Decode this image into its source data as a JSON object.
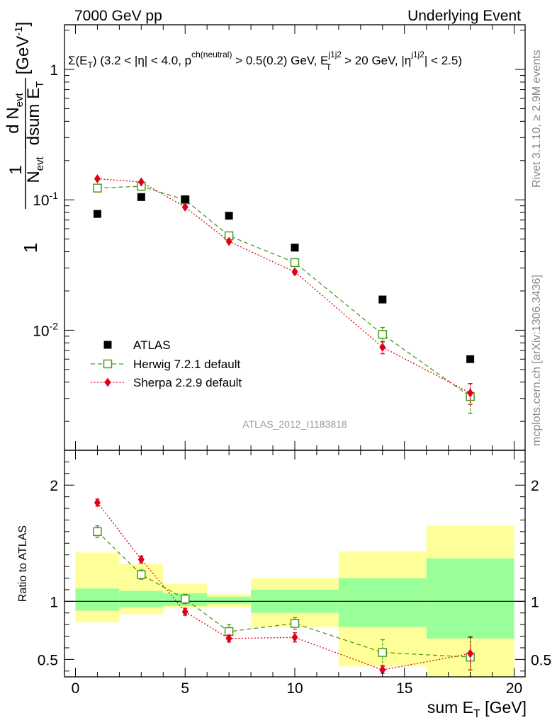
{
  "header": {
    "left": "7000 GeV pp",
    "right": "Underlying Event"
  },
  "chart_data": [
    {
      "type": "scatter",
      "title": "Σ(E_T) (3.2 < |η| < 4.0, p^{ch(neutral)} > 0.5(0.2) GeV, E_T^{j1j2} > 20 GeV, |η^{j1j2}| < 2.5)",
      "xlabel": "sum E_T [GeV]",
      "ylabel": "1/N_evt dN_evt/dsum E_T [GeV^-1]",
      "yscale": "log",
      "xlim": [
        -0.5,
        20.5
      ],
      "ylim": [
        0.0012,
        2.2
      ],
      "x": [
        1,
        3,
        5,
        7,
        10,
        14,
        18
      ],
      "x_edges": [
        0,
        2,
        4,
        6,
        8,
        12,
        16,
        20
      ],
      "series": [
        {
          "name": "ATLAS",
          "color": "#000000",
          "marker": "square",
          "values": [
            0.078,
            0.105,
            0.101,
            0.0755,
            0.043,
            0.0172,
            0.006
          ]
        },
        {
          "name": "Herwig 7.2.1 default",
          "color": "#4a9a1e",
          "marker": "open-square",
          "line": "dashed",
          "values": [
            0.123,
            0.127,
            0.1,
            0.053,
            0.033,
            0.0093,
            0.0031
          ],
          "errors": [
            0,
            0,
            0,
            0.002,
            0.002,
            0.0012,
            0.0008
          ]
        },
        {
          "name": "Sherpa 2.2.9 default",
          "color": "#e0001a",
          "marker": "diamond",
          "line": "dotted",
          "values": [
            0.145,
            0.137,
            0.088,
            0.048,
            0.028,
            0.0074,
            0.0033
          ],
          "errors": [
            0,
            0,
            0,
            0,
            0.001,
            0.0008,
            0.0006
          ]
        }
      ],
      "legend": "bottom-left",
      "watermark": "ATLAS_2012_I1183818"
    },
    {
      "type": "scatter",
      "ylabel": "Ratio to ATLAS",
      "xlim": [
        -0.5,
        20.5
      ],
      "ylim": [
        0.35,
        2.3
      ],
      "x": [
        1,
        3,
        5,
        7,
        10,
        14,
        18
      ],
      "reference": 1,
      "bands": {
        "x_edges": [
          0,
          2,
          4,
          6,
          8,
          12,
          16,
          20
        ],
        "stat_low": [
          0.92,
          0.95,
          0.96,
          0.98,
          0.9,
          0.78,
          0.68
        ],
        "stat_high": [
          1.11,
          1.09,
          1.07,
          1.04,
          1.1,
          1.2,
          1.37
        ],
        "tot_low": [
          0.82,
          0.89,
          0.94,
          0.95,
          0.78,
          0.44,
          0.35
        ],
        "tot_high": [
          1.42,
          1.32,
          1.15,
          1.06,
          1.2,
          1.43,
          1.65
        ]
      },
      "series": [
        {
          "name": "Herwig 7.2.1 default",
          "values": [
            1.6,
            1.23,
            1.02,
            0.74,
            0.81,
            0.56,
            0.52
          ],
          "errors": [
            0.05,
            0.04,
            0.04,
            0.06,
            0.05,
            0.11,
            0.18
          ]
        },
        {
          "name": "Sherpa 2.2.9 default",
          "values": [
            1.85,
            1.36,
            0.91,
            0.68,
            0.69,
            0.41,
            0.55
          ],
          "errors": [
            0.03,
            0.03,
            0.03,
            0.03,
            0.04,
            0.03,
            0.14
          ]
        }
      ],
      "ytick_labels": [
        "0.5",
        "1",
        "2"
      ],
      "xtick_labels": [
        "0",
        "5",
        "10",
        "15",
        "20"
      ]
    }
  ],
  "side_text": {
    "rivet": "Rivet 3.1.10, ≥ 2.9M events",
    "mcplots": "mcplots.cern.ch [arXiv:1306.3436]"
  }
}
